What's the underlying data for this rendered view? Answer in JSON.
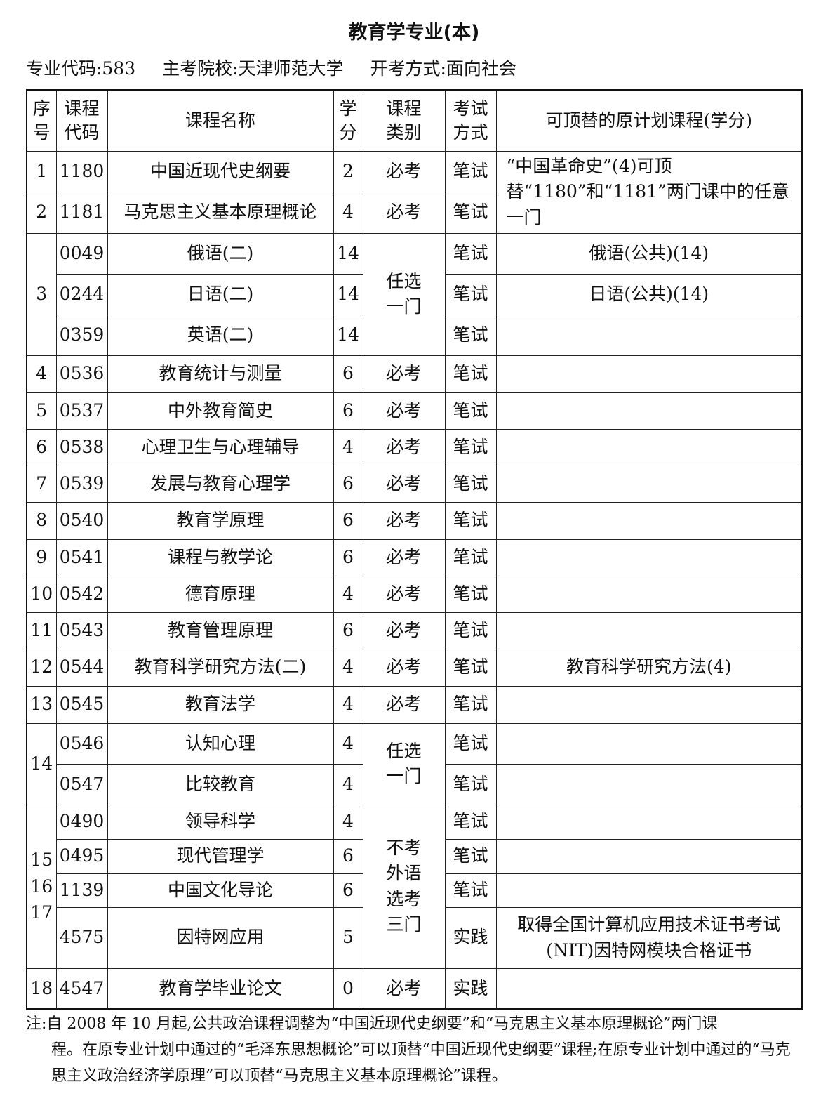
{
  "title": "教育学专业(本)",
  "meta": {
    "code": "专业代码:583",
    "school": "主考院校:天津师范大学",
    "mode": "开考方式:面向社会"
  },
  "headers": {
    "seq": "序号",
    "code": "课程代码",
    "name": "课程名称",
    "credit": "学分",
    "type": "课程类别",
    "exam": "考试方式",
    "replace": "可顶替的原计划课程(学分)"
  },
  "rows": [
    {
      "seq": "1",
      "code": "1180",
      "name": "中国近现代史纲要",
      "credit": "2",
      "type": "必考",
      "exam": "笔试"
    },
    {
      "seq": "2",
      "code": "1181",
      "name": "马克思主义基本原理概论",
      "credit": "4",
      "type": "必考",
      "exam": "笔试"
    },
    {
      "seq": "3",
      "code": "0049",
      "name": "俄语(二)",
      "credit": "14",
      "type": "任选一门",
      "exam": "笔试",
      "replace": "俄语(公共)(14)"
    },
    {
      "code": "0244",
      "name": "日语(二)",
      "credit": "14",
      "exam": "笔试",
      "replace": "日语(公共)(14)"
    },
    {
      "code": "0359",
      "name": "英语(二)",
      "credit": "14",
      "exam": "笔试"
    },
    {
      "seq": "4",
      "code": "0536",
      "name": "教育统计与测量",
      "credit": "6",
      "type": "必考",
      "exam": "笔试"
    },
    {
      "seq": "5",
      "code": "0537",
      "name": "中外教育简史",
      "credit": "6",
      "type": "必考",
      "exam": "笔试"
    },
    {
      "seq": "6",
      "code": "0538",
      "name": "心理卫生与心理辅导",
      "credit": "4",
      "type": "必考",
      "exam": "笔试"
    },
    {
      "seq": "7",
      "code": "0539",
      "name": "发展与教育心理学",
      "credit": "6",
      "type": "必考",
      "exam": "笔试"
    },
    {
      "seq": "8",
      "code": "0540",
      "name": "教育学原理",
      "credit": "6",
      "type": "必考",
      "exam": "笔试"
    },
    {
      "seq": "9",
      "code": "0541",
      "name": "课程与教学论",
      "credit": "6",
      "type": "必考",
      "exam": "笔试"
    },
    {
      "seq": "10",
      "code": "0542",
      "name": "德育原理",
      "credit": "4",
      "type": "必考",
      "exam": "笔试"
    },
    {
      "seq": "11",
      "code": "0543",
      "name": "教育管理原理",
      "credit": "6",
      "type": "必考",
      "exam": "笔试"
    },
    {
      "seq": "12",
      "code": "0544",
      "name": "教育科学研究方法(二)",
      "credit": "4",
      "type": "必考",
      "exam": "笔试",
      "replace": "教育科学研究方法(4)"
    },
    {
      "seq": "13",
      "code": "0545",
      "name": "教育法学",
      "credit": "4",
      "type": "必考",
      "exam": "笔试"
    },
    {
      "seq": "14",
      "code": "0546",
      "name": "认知心理",
      "credit": "4",
      "type": "任选一门",
      "exam": "笔试"
    },
    {
      "code": "0547",
      "name": "比较教育",
      "credit": "4",
      "exam": "笔试"
    },
    {
      "seq": "15 16 17",
      "code": "0490",
      "name": "领导科学",
      "credit": "4",
      "type": "不考外语选考三门",
      "exam": "笔试"
    },
    {
      "code": "0495",
      "name": "现代管理学",
      "credit": "6",
      "exam": "笔试"
    },
    {
      "code": "1139",
      "name": "中国文化导论",
      "credit": "6",
      "exam": "笔试"
    },
    {
      "code": "4575",
      "name": "因特网应用",
      "credit": "5",
      "exam": "实践",
      "replace": "取得全国计算机应用技术证书考试(NIT)因特网模块合格证书"
    },
    {
      "seq": "18",
      "code": "4547",
      "name": "教育学毕业论文",
      "credit": "0",
      "type": "必考",
      "exam": "实践"
    }
  ],
  "replace_1_2": "“中国革命史”(4)可顶替“1180”和“1181”两门课中的任意一门",
  "note": {
    "line1": "注:自 2008 年 10 月起,公共政治课程调整为“中国近现代史纲要”和“马克思主义基本原理概论”两门课",
    "line2": "程。在原专业计划中通过的“毛泽东思想概论”可以顶替“中国近现代史纲要”课程;在原专业计划中通过的“马克思主义政治经济学原理”可以顶替“马克思主义基本原理概论”课程。"
  }
}
